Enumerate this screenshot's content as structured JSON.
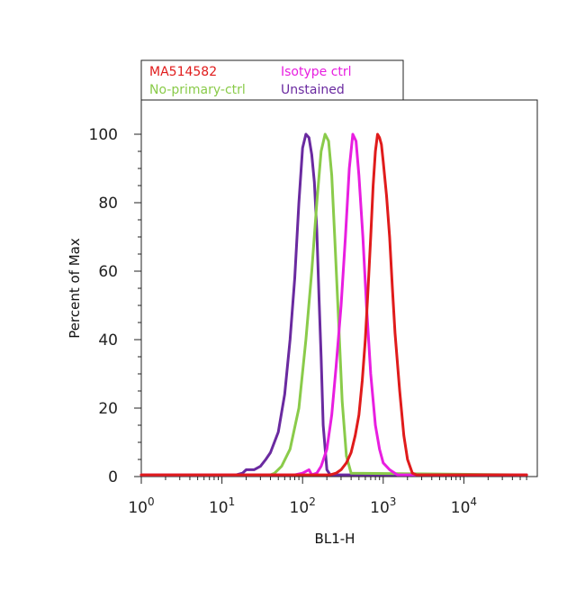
{
  "chart_data": {
    "type": "line",
    "title": "",
    "xlabel": "BL1-H",
    "ylabel": "Percent of Max",
    "xscale": "log",
    "xlim": [
      1,
      60000
    ],
    "ylim": [
      0,
      110
    ],
    "grid": false,
    "legend_position": "top-left",
    "x_ticks": [
      {
        "base": "10",
        "exp": "0",
        "value": 1
      },
      {
        "base": "10",
        "exp": "1",
        "value": 10
      },
      {
        "base": "10",
        "exp": "2",
        "value": 100
      },
      {
        "base": "10",
        "exp": "3",
        "value": 1000
      },
      {
        "base": "10",
        "exp": "4",
        "value": 10000
      }
    ],
    "y_ticks": [
      "0",
      "20",
      "40",
      "60",
      "80",
      "100"
    ],
    "series": [
      {
        "name": "Unstained",
        "color": "#6a2aa0",
        "x": [
          1,
          15,
          18,
          20,
          25,
          30,
          35,
          40,
          50,
          60,
          70,
          80,
          90,
          100,
          110,
          120,
          130,
          140,
          150,
          160,
          170,
          180,
          200,
          220,
          60000
        ],
        "y": [
          0.5,
          0.5,
          1,
          2,
          2,
          3,
          5,
          7,
          13,
          24,
          40,
          58,
          80,
          96,
          100,
          99,
          94,
          86,
          72,
          52,
          35,
          15,
          2,
          0.5,
          0.5
        ]
      },
      {
        "name": "No-primary-ctrl",
        "color": "#8acb4a",
        "x": [
          1,
          40,
          45,
          55,
          70,
          90,
          110,
          130,
          150,
          170,
          190,
          210,
          230,
          250,
          280,
          310,
          350,
          400,
          60000
        ],
        "y": [
          0.5,
          0.5,
          1,
          3,
          8,
          20,
          40,
          60,
          80,
          95,
          100,
          98,
          88,
          70,
          45,
          22,
          6,
          1,
          0.5
        ]
      },
      {
        "name": "Isotype ctrl",
        "color": "#e81ee0",
        "x": [
          1,
          80,
          100,
          120,
          130,
          150,
          170,
          200,
          230,
          260,
          300,
          340,
          380,
          420,
          460,
          500,
          560,
          620,
          700,
          800,
          900,
          1000,
          1200,
          1500,
          60000
        ],
        "y": [
          0.5,
          0.5,
          1,
          2,
          0.5,
          1,
          3,
          8,
          18,
          32,
          50,
          70,
          90,
          100,
          98,
          88,
          70,
          50,
          30,
          15,
          8,
          4,
          2,
          0.5,
          0.5
        ]
      },
      {
        "name": "MA514582",
        "color": "#e01b1b",
        "x": [
          1,
          220,
          260,
          300,
          350,
          400,
          450,
          500,
          550,
          600,
          650,
          700,
          750,
          800,
          850,
          900,
          950,
          1000,
          1100,
          1200,
          1300,
          1400,
          1600,
          1800,
          2000,
          2300,
          2600,
          60000
        ],
        "y": [
          0.5,
          0.5,
          1,
          2,
          4,
          7,
          12,
          18,
          28,
          40,
          55,
          70,
          85,
          95,
          100,
          99,
          97,
          92,
          82,
          70,
          55,
          42,
          25,
          12,
          5,
          1,
          0.5,
          0.5
        ]
      }
    ]
  },
  "legend": {
    "items": [
      {
        "label": "MA514582",
        "color": "#e01b1b"
      },
      {
        "label": "Isotype ctrl",
        "color": "#e81ee0"
      },
      {
        "label": "No-primary-ctrl",
        "color": "#8acb4a"
      },
      {
        "label": "Unstained",
        "color": "#6a2aa0"
      }
    ]
  }
}
